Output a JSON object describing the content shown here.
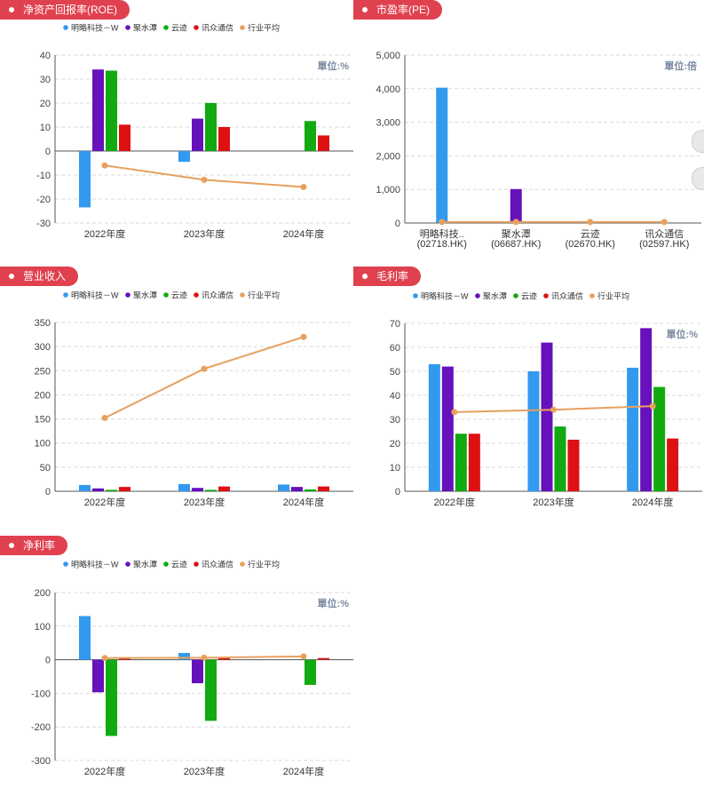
{
  "colors": {
    "badge": "#e0414f",
    "series": [
      "#3399ee",
      "#6611bb",
      "#11aa11",
      "#dd1111",
      "#e8a060"
    ],
    "grid": "#d9d9d9"
  },
  "legend": [
    "明略科技－W",
    "聚水潭",
    "云迹",
    "讯众通信",
    "行业平均"
  ],
  "chart_data": [
    {
      "id": "roe",
      "type": "bar",
      "title": "净资产回报率(ROE)",
      "unit_label": "單位:%",
      "categories": [
        "2022年度",
        "2023年度",
        "2024年度"
      ],
      "ylim": [
        -30,
        40
      ],
      "yticks": [
        40,
        30,
        20,
        10,
        0,
        -10,
        -20,
        -30
      ],
      "series": [
        {
          "name": "明略科技－W",
          "values": [
            -23.5,
            -4.5,
            null
          ]
        },
        {
          "name": "聚水潭",
          "values": [
            34,
            13.5,
            null
          ]
        },
        {
          "name": "云迹",
          "values": [
            33.5,
            20,
            12.5
          ]
        },
        {
          "name": "讯众通信",
          "values": [
            11,
            10,
            6.5
          ]
        }
      ],
      "line": {
        "name": "行业平均",
        "values": [
          -6,
          -12,
          -15
        ]
      },
      "grid": true,
      "legend_position": "top"
    },
    {
      "id": "pe",
      "type": "bar",
      "title": "市盈率(PE)",
      "unit_label": "單位:倍",
      "categories": [
        "明略科技..",
        "聚水潭",
        "云迹",
        "讯众通信"
      ],
      "category_codes": [
        "(02718.HK)",
        "(06687.HK)",
        "(02670.HK)",
        "(02597.HK)"
      ],
      "ylim": [
        0,
        5000
      ],
      "yticks": [
        5000,
        4000,
        3000,
        2000,
        1000,
        0
      ],
      "ytick_labels": [
        "5,000",
        "4,000",
        "3,000",
        "2,000",
        "1,000",
        "0"
      ],
      "values": [
        4030,
        1010,
        0,
        0
      ],
      "value_colors": [
        "#3399ee",
        "#6611bb",
        "#11aa11",
        "#dd1111"
      ],
      "line": {
        "name": "行业平均",
        "values": [
          30,
          30,
          30,
          30
        ]
      },
      "grid": true
    },
    {
      "id": "revenue",
      "type": "bar",
      "title": "营业收入",
      "unit_label": "",
      "categories": [
        "2022年度",
        "2023年度",
        "2024年度"
      ],
      "ylim": [
        0,
        350
      ],
      "yticks": [
        350,
        300,
        250,
        200,
        150,
        100,
        50,
        0
      ],
      "series": [
        {
          "name": "明略科技－W",
          "values": [
            13,
            15,
            14
          ]
        },
        {
          "name": "聚水潭",
          "values": [
            6,
            7,
            9
          ]
        },
        {
          "name": "云迹",
          "values": [
            3,
            3,
            4
          ]
        },
        {
          "name": "讯众通信",
          "values": [
            9,
            10,
            10
          ]
        }
      ],
      "line": {
        "name": "行业平均",
        "values": [
          152,
          254,
          320
        ]
      },
      "grid": true,
      "legend_position": "top"
    },
    {
      "id": "gross_margin",
      "type": "bar",
      "title": "毛利率",
      "unit_label": "單位:%",
      "categories": [
        "2022年度",
        "2023年度",
        "2024年度"
      ],
      "ylim": [
        0,
        70
      ],
      "yticks": [
        70,
        60,
        50,
        40,
        30,
        20,
        10,
        0
      ],
      "series": [
        {
          "name": "明略科技－W",
          "values": [
            53,
            50,
            51.5
          ]
        },
        {
          "name": "聚水潭",
          "values": [
            52,
            62,
            68
          ]
        },
        {
          "name": "云迹",
          "values": [
            24,
            27,
            43.5
          ]
        },
        {
          "name": "讯众通信",
          "values": [
            24,
            21.5,
            22
          ]
        }
      ],
      "line": {
        "name": "行业平均",
        "values": [
          33,
          34,
          35.5
        ]
      },
      "grid": true,
      "legend_position": "top"
    },
    {
      "id": "net_margin",
      "type": "bar",
      "title": "净利率",
      "unit_label": "單位:%",
      "categories": [
        "2022年度",
        "2023年度",
        "2024年度"
      ],
      "ylim": [
        -300,
        200
      ],
      "yticks": [
        200,
        100,
        0,
        -100,
        -200,
        -300
      ],
      "series": [
        {
          "name": "明略科技－W",
          "values": [
            130,
            20,
            null
          ]
        },
        {
          "name": "聚水潭",
          "values": [
            -97,
            -70,
            null
          ]
        },
        {
          "name": "云迹",
          "values": [
            -227,
            -182,
            -75
          ]
        },
        {
          "name": "讯众通信",
          "values": [
            5,
            5,
            5
          ]
        }
      ],
      "line": {
        "name": "行业平均",
        "values": [
          5,
          6,
          10
        ]
      },
      "grid": true,
      "legend_position": "top"
    }
  ]
}
